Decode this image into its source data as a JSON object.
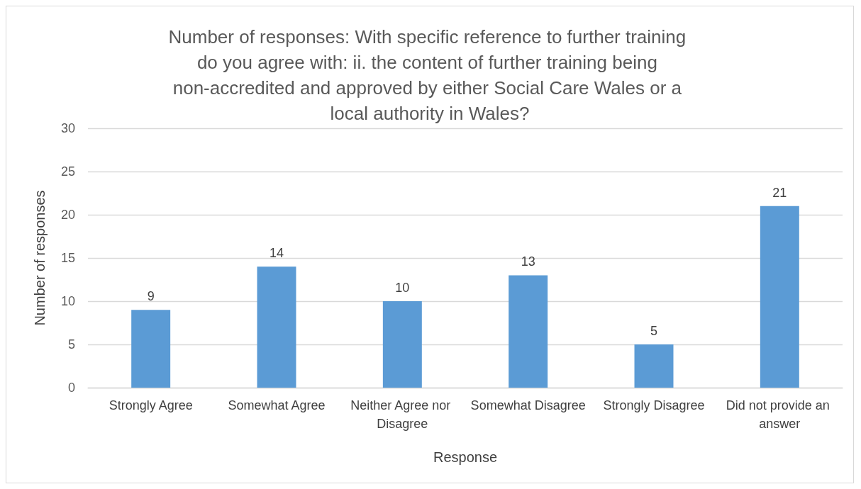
{
  "chart_data": {
    "type": "bar",
    "title": "Number of responses: With specific reference to further training do you agree with: ii. the content of further training being non-accredited and approved by either Social Care Wales or a local authority in Wales?",
    "xlabel": "Response",
    "ylabel": "Number of responses",
    "categories": [
      "Strongly Agree",
      "Somewhat Agree",
      "Neither Agree nor Disagree",
      "Somewhat Disagree",
      "Strongly Disagree",
      "Did not provide an answer"
    ],
    "values": [
      9,
      14,
      10,
      13,
      5,
      21
    ],
    "color": "#5b9bd5",
    "ylim": [
      0,
      30
    ],
    "yticks": [
      0,
      5,
      10,
      15,
      20,
      25,
      30
    ],
    "grid": "y",
    "data_labels": true
  }
}
